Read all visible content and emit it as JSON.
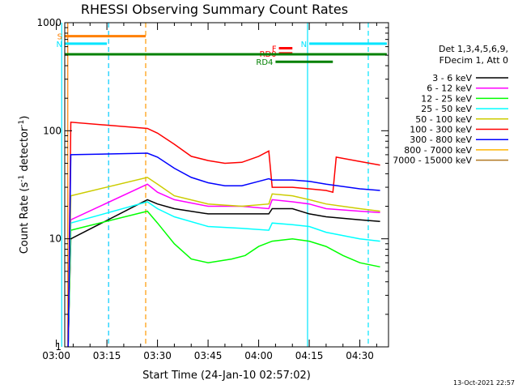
{
  "chart_data": {
    "type": "line",
    "title": "RHESSI Observing Summary Count Rates",
    "xlabel": "Start Time (24-Jan-10 02:57:02)",
    "ylabel_parts": [
      "Count Rate (s",
      "-1",
      " detector",
      "-1",
      ")"
    ],
    "yscale": "log",
    "ylim": [
      1,
      1000
    ],
    "xlim_minutes": [
      2.5,
      98.5
    ],
    "x_ticks": [
      {
        "label": "03:00",
        "minute": 0
      },
      {
        "label": "03:15",
        "minute": 15
      },
      {
        "label": "03:30",
        "minute": 30
      },
      {
        "label": "03:45",
        "minute": 45
      },
      {
        "label": "04:00",
        "minute": 60
      },
      {
        "label": "04:15",
        "minute": 75
      },
      {
        "label": "04:30",
        "minute": 90
      }
    ],
    "y_ticks": [
      {
        "label": "1",
        "value": 1
      },
      {
        "label": "10",
        "value": 10
      },
      {
        "label": "100",
        "value": 100
      },
      {
        "label": "1000",
        "value": 1000
      }
    ],
    "legend_header": [
      "Det 1,3,4,5,6,9,",
      "FDecim 1, Att 0"
    ],
    "legend_placement": "right",
    "series": [
      {
        "name": "3 - 6 keV",
        "color": "#000000",
        "points": [
          [
            3.5,
            1
          ],
          [
            4.3,
            10
          ],
          [
            27,
            23
          ],
          [
            30,
            21
          ],
          [
            35,
            19
          ],
          [
            45,
            17
          ],
          [
            55,
            17
          ],
          [
            63,
            17
          ],
          [
            64,
            19
          ],
          [
            70,
            19
          ],
          [
            75,
            17
          ],
          [
            80,
            16
          ],
          [
            90,
            15
          ],
          [
            96,
            14.5
          ]
        ]
      },
      {
        "name": "6 - 12 keV",
        "color": "#ff00ff",
        "points": [
          [
            3.5,
            1
          ],
          [
            4.3,
            15
          ],
          [
            27,
            32
          ],
          [
            30,
            27
          ],
          [
            35,
            23
          ],
          [
            45,
            20
          ],
          [
            55,
            20
          ],
          [
            63,
            19
          ],
          [
            64,
            23
          ],
          [
            70,
            22
          ],
          [
            75,
            21
          ],
          [
            80,
            19
          ],
          [
            90,
            18
          ],
          [
            96,
            17.5
          ]
        ]
      },
      {
        "name": "12 - 25 keV",
        "color": "#00ff00",
        "points": [
          [
            3.5,
            1
          ],
          [
            4.3,
            12
          ],
          [
            27,
            18
          ],
          [
            30,
            14
          ],
          [
            35,
            9
          ],
          [
            40,
            6.5
          ],
          [
            45,
            6
          ],
          [
            52,
            6.5
          ],
          [
            56,
            7
          ],
          [
            60,
            8.5
          ],
          [
            64,
            9.5
          ],
          [
            70,
            10
          ],
          [
            75,
            9.5
          ],
          [
            80,
            8.5
          ],
          [
            85,
            7
          ],
          [
            90,
            6
          ],
          [
            96,
            5.5
          ]
        ]
      },
      {
        "name": "25 - 50 keV",
        "color": "#00ffff",
        "points": [
          [
            3.5,
            1
          ],
          [
            4.3,
            14
          ],
          [
            27,
            22
          ],
          [
            30,
            19
          ],
          [
            35,
            16
          ],
          [
            45,
            13
          ],
          [
            55,
            12.5
          ],
          [
            63,
            12
          ],
          [
            64,
            14
          ],
          [
            70,
            13.5
          ],
          [
            75,
            13
          ],
          [
            80,
            11.5
          ],
          [
            90,
            10
          ],
          [
            96,
            9.5
          ]
        ]
      },
      {
        "name": "50 - 100 keV",
        "color": "#cccc00",
        "points": [
          [
            3.5,
            1
          ],
          [
            4.3,
            25
          ],
          [
            27,
            37
          ],
          [
            30,
            32
          ],
          [
            35,
            25
          ],
          [
            45,
            21
          ],
          [
            55,
            20
          ],
          [
            63,
            21
          ],
          [
            64,
            26
          ],
          [
            70,
            25
          ],
          [
            75,
            23
          ],
          [
            80,
            21
          ],
          [
            90,
            19
          ],
          [
            96,
            18
          ]
        ]
      },
      {
        "name": "100 - 300 keV",
        "color": "#ff0000",
        "points": [
          [
            3.5,
            1
          ],
          [
            4.3,
            120
          ],
          [
            27,
            105
          ],
          [
            30,
            95
          ],
          [
            35,
            75
          ],
          [
            40,
            58
          ],
          [
            45,
            53
          ],
          [
            50,
            50
          ],
          [
            55,
            51
          ],
          [
            60,
            58
          ],
          [
            63,
            65
          ],
          [
            64,
            30
          ],
          [
            70,
            30
          ],
          [
            75,
            29
          ],
          [
            80,
            28
          ],
          [
            82,
            27
          ],
          [
            83,
            57
          ],
          [
            90,
            52
          ],
          [
            96,
            48
          ]
        ]
      },
      {
        "name": "300 - 800 keV",
        "color": "#0000ff",
        "points": [
          [
            3.5,
            1
          ],
          [
            4.3,
            60
          ],
          [
            27,
            62
          ],
          [
            30,
            57
          ],
          [
            35,
            45
          ],
          [
            40,
            37
          ],
          [
            45,
            33
          ],
          [
            50,
            31
          ],
          [
            55,
            31
          ],
          [
            60,
            34
          ],
          [
            63,
            36
          ],
          [
            64,
            35
          ],
          [
            70,
            35
          ],
          [
            75,
            34
          ],
          [
            80,
            32
          ],
          [
            90,
            29
          ],
          [
            96,
            28
          ]
        ]
      },
      {
        "name": "800 - 7000 keV",
        "color": "#ffb400",
        "points": []
      },
      {
        "name": "7000 - 15000 keV",
        "color": "#b07820",
        "points": []
      }
    ],
    "flags": [
      {
        "label": "S",
        "color": "#ff7f00",
        "start": 1.5,
        "end": 26.5,
        "level": 750
      },
      {
        "label": "N",
        "color": "#00e5ff",
        "start": 1.5,
        "end": 15,
        "level": 640
      },
      {
        "label": "N",
        "color": "#00e5ff",
        "start": 75,
        "end": 98,
        "level": 640
      },
      {
        "label": "F",
        "color": "#ff0000",
        "start": 66,
        "end": 70,
        "level": 580
      },
      {
        "label": "RD0",
        "color": "#ff0000",
        "start": 66,
        "end": 70,
        "level": 520
      },
      {
        "label": "RD4",
        "color": "#008000",
        "start": 65,
        "end": 82,
        "level": 435
      },
      {
        "label": "",
        "color": "#008000",
        "start": 1.5,
        "end": 98,
        "level": 510
      }
    ],
    "vertical_markers": [
      {
        "minute": 15.5,
        "color": "#00ccff",
        "style": "dashed"
      },
      {
        "minute": 26.5,
        "color": "#ff9900",
        "style": "dashed"
      },
      {
        "minute": 74.5,
        "color": "#00e5ff",
        "style": "solid"
      },
      {
        "minute": 92.5,
        "color": "#00e5ff",
        "style": "dashed"
      },
      {
        "minute": 1.6,
        "color": "#00e5ff",
        "style": "solid"
      },
      {
        "minute": 3.4,
        "color": "#ff7f00",
        "style": "solid"
      }
    ]
  },
  "footer_timestamp": "13-Oct-2021 22:57"
}
